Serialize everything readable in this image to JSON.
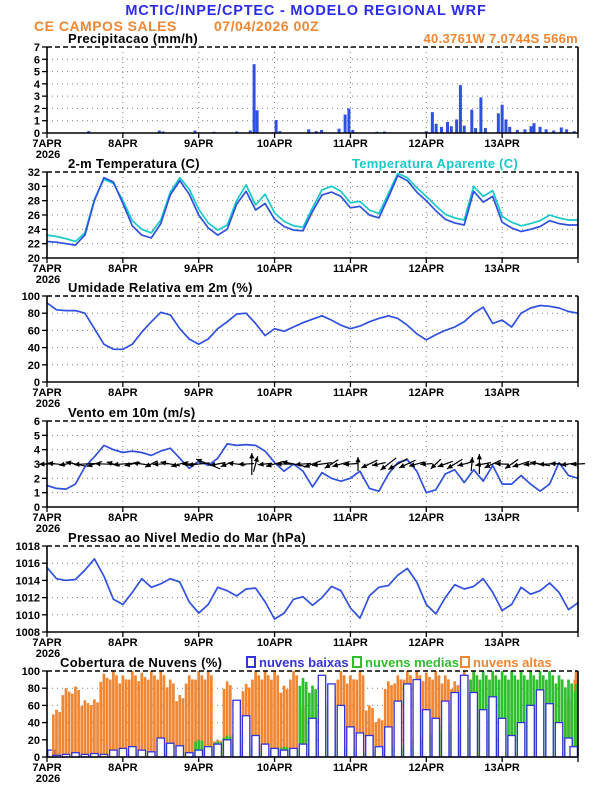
{
  "header": {
    "title": "MCTIC/INPE/CPTEC - MODELO REGIONAL WRF",
    "station": "CE CAMPOS SALES",
    "run": "07/04/2026 00Z",
    "location": "40.3761W 7.0744S 566m"
  },
  "colors": {
    "title_blue": "#2b2bee",
    "orange": "#f08632",
    "line_blue": "#3050e0",
    "cyan": "#17c9c9",
    "green": "#2ebe2e",
    "cloud_blue": "#3434d6",
    "black": "#000000"
  },
  "x_axis": {
    "tick_labels": [
      "7APR",
      "8APR",
      "9APR",
      "10APR",
      "11APR",
      "12APR",
      "13APR"
    ],
    "year_label": "2026",
    "range_days": [
      0,
      7
    ],
    "grid": "dotted"
  },
  "chart_data": [
    {
      "id": "precip",
      "type": "bar",
      "title": "Precipitacao (mm/h)",
      "ylim": [
        0,
        7
      ],
      "yticks": [
        0,
        1,
        2,
        3,
        4,
        5,
        6,
        7
      ],
      "bar_color": "line_blue",
      "bars": [
        [
          0.55,
          0.15
        ],
        [
          1.48,
          0.2
        ],
        [
          1.53,
          0.12
        ],
        [
          1.95,
          0.2
        ],
        [
          2.2,
          0.1
        ],
        [
          2.5,
          0.12
        ],
        [
          2.68,
          0.2
        ],
        [
          2.73,
          5.6
        ],
        [
          2.77,
          1.85
        ],
        [
          3.02,
          1.05
        ],
        [
          3.07,
          0.15
        ],
        [
          3.45,
          0.3
        ],
        [
          3.55,
          0.15
        ],
        [
          3.62,
          0.25
        ],
        [
          3.85,
          0.35
        ],
        [
          3.93,
          1.5
        ],
        [
          3.98,
          2.0
        ],
        [
          4.03,
          0.25
        ],
        [
          4.35,
          0.1
        ],
        [
          4.45,
          0.12
        ],
        [
          5.0,
          0.15
        ],
        [
          5.08,
          1.7
        ],
        [
          5.13,
          0.75
        ],
        [
          5.2,
          0.5
        ],
        [
          5.28,
          0.9
        ],
        [
          5.33,
          0.55
        ],
        [
          5.4,
          1.1
        ],
        [
          5.45,
          3.9
        ],
        [
          5.5,
          0.6
        ],
        [
          5.6,
          1.9
        ],
        [
          5.65,
          0.4
        ],
        [
          5.72,
          2.9
        ],
        [
          5.78,
          0.4
        ],
        [
          5.95,
          1.6
        ],
        [
          6.0,
          2.3
        ],
        [
          6.05,
          1.1
        ],
        [
          6.1,
          0.5
        ],
        [
          6.2,
          0.25
        ],
        [
          6.3,
          0.3
        ],
        [
          6.38,
          0.55
        ],
        [
          6.42,
          0.8
        ],
        [
          6.5,
          0.5
        ],
        [
          6.58,
          0.3
        ],
        [
          6.68,
          0.2
        ],
        [
          6.78,
          0.45
        ],
        [
          6.85,
          0.3
        ],
        [
          6.95,
          0.15
        ]
      ]
    },
    {
      "id": "temp",
      "type": "line",
      "title": "2-m Temperatura (C)",
      "ylim": [
        20,
        32
      ],
      "yticks": [
        20,
        22,
        24,
        26,
        28,
        30,
        32
      ],
      "x_step_days": 0.125,
      "series": [
        {
          "name": "Temperatura Aparente (C)",
          "color": "cyan",
          "values": [
            23.2,
            23.0,
            22.7,
            22.3,
            23.5,
            28.2,
            31.0,
            30.4,
            28.0,
            25.2,
            24.0,
            23.5,
            25.3,
            29.2,
            31.2,
            29.6,
            26.8,
            24.9,
            23.9,
            24.6,
            28.0,
            30.2,
            27.4,
            28.9,
            26.3,
            25.1,
            24.5,
            24.3,
            27.0,
            29.5,
            30.0,
            29.3,
            27.7,
            27.9,
            26.7,
            26.2,
            29.0,
            31.8,
            31.2,
            29.8,
            28.6,
            27.3,
            26.1,
            25.6,
            25.3,
            30.0,
            28.6,
            29.4,
            25.8,
            25.0,
            24.5,
            24.8,
            25.2,
            26.0,
            25.6,
            25.3,
            25.3
          ]
        },
        {
          "name": "2-m Temperatura (C)",
          "color": "line_blue",
          "values": [
            22.3,
            22.2,
            22.0,
            21.8,
            23.2,
            28.0,
            31.2,
            30.6,
            27.6,
            24.5,
            23.2,
            22.8,
            24.8,
            28.8,
            30.8,
            28.9,
            26.0,
            24.2,
            23.2,
            24.0,
            27.5,
            29.3,
            26.7,
            27.6,
            25.4,
            24.4,
            23.9,
            23.8,
            26.5,
            28.8,
            29.2,
            28.6,
            27.0,
            27.2,
            26.0,
            25.6,
            28.5,
            31.5,
            30.8,
            29.2,
            28.0,
            26.6,
            25.4,
            24.9,
            24.6,
            29.3,
            27.8,
            28.6,
            25.0,
            24.2,
            23.7,
            24.0,
            24.4,
            25.2,
            24.8,
            24.6,
            24.6
          ]
        }
      ]
    },
    {
      "id": "rh",
      "type": "line",
      "title": "Umidade Relativa em 2m (%)",
      "ylim": [
        0,
        100
      ],
      "yticks": [
        0,
        20,
        40,
        60,
        80,
        100
      ],
      "x_step_days": 0.125,
      "series": [
        {
          "name": "Umidade Relativa em 2m (%)",
          "color": "line_blue",
          "values": [
            92,
            84,
            83,
            83,
            80,
            62,
            44,
            38,
            38,
            44,
            58,
            70,
            81,
            78,
            62,
            50,
            44,
            50,
            62,
            70,
            79,
            80,
            68,
            54,
            62,
            59,
            64,
            69,
            73,
            77,
            72,
            66,
            62,
            65,
            70,
            74,
            77,
            74,
            66,
            56,
            49,
            55,
            60,
            64,
            70,
            80,
            87,
            68,
            72,
            64,
            80,
            86,
            89,
            88,
            86,
            82,
            80
          ]
        }
      ]
    },
    {
      "id": "wind",
      "type": "wind",
      "title": "Vento em 10m (m/s)",
      "ylim": [
        0,
        6
      ],
      "yticks": [
        0,
        1,
        2,
        3,
        4,
        5,
        6
      ],
      "x_step_days": 0.125,
      "arrow_anchor_value": 3,
      "series": [
        {
          "name": "Vento em 10m (m/s)",
          "color": "line_blue",
          "values": [
            1.5,
            1.3,
            1.25,
            1.6,
            2.8,
            3.5,
            4.3,
            4.0,
            3.8,
            3.9,
            3.8,
            3.6,
            3.9,
            4.1,
            3.4,
            2.7,
            3.2,
            2.9,
            3.4,
            4.4,
            4.3,
            4.35,
            4.3,
            3.9,
            3.1,
            2.5,
            3.0,
            2.5,
            1.4,
            2.4,
            2.0,
            1.8,
            2.0,
            2.5,
            1.3,
            1.1,
            2.3,
            3.1,
            3.3,
            2.5,
            1.0,
            1.2,
            2.3,
            2.6,
            1.7,
            2.6,
            1.8,
            2.9,
            1.6,
            1.6,
            2.2,
            1.6,
            1.1,
            1.6,
            3.1,
            2.2,
            2.0
          ]
        }
      ],
      "arrows": [
        [
          0,
          182,
          16
        ],
        [
          0.125,
          174,
          18
        ],
        [
          0.25,
          190,
          14
        ],
        [
          0.375,
          168,
          20
        ],
        [
          0.5,
          183,
          22
        ],
        [
          0.625,
          198,
          16
        ],
        [
          0.75,
          178,
          18
        ],
        [
          0.875,
          163,
          14
        ],
        [
          1,
          184,
          20
        ],
        [
          1.125,
          192,
          16
        ],
        [
          1.25,
          173,
          18
        ],
        [
          1.375,
          207,
          14
        ],
        [
          1.5,
          183,
          16
        ],
        [
          1.625,
          169,
          20
        ],
        [
          1.75,
          196,
          18
        ],
        [
          1.875,
          181,
          14
        ],
        [
          2,
          186,
          22
        ],
        [
          2.125,
          158,
          26
        ],
        [
          2.25,
          191,
          16
        ],
        [
          2.375,
          202,
          14
        ],
        [
          2.5,
          174,
          18
        ],
        [
          2.625,
          183,
          16
        ],
        [
          2.7,
          90,
          22
        ],
        [
          2.75,
          75,
          16
        ],
        [
          2.875,
          186,
          14
        ],
        [
          3,
          196,
          18
        ],
        [
          3.125,
          179,
          16
        ],
        [
          3.25,
          168,
          24
        ],
        [
          3.375,
          184,
          16
        ],
        [
          3.5,
          201,
          18
        ],
        [
          3.625,
          188,
          20
        ],
        [
          3.75,
          212,
          16
        ],
        [
          3.875,
          196,
          18
        ],
        [
          4,
          184,
          14
        ],
        [
          4.1,
          90,
          14
        ],
        [
          4.25,
          206,
          18
        ],
        [
          4.375,
          192,
          14
        ],
        [
          4.5,
          218,
          20
        ],
        [
          4.625,
          210,
          22
        ],
        [
          4.75,
          205,
          18
        ],
        [
          4.875,
          196,
          16
        ],
        [
          5,
          184,
          12
        ],
        [
          5.125,
          224,
          14
        ],
        [
          5.25,
          200,
          16
        ],
        [
          5.375,
          212,
          18
        ],
        [
          5.5,
          195,
          14
        ],
        [
          5.6,
          85,
          14
        ],
        [
          5.7,
          90,
          20
        ],
        [
          5.75,
          190,
          16
        ],
        [
          5.875,
          205,
          18
        ],
        [
          6,
          178,
          14
        ],
        [
          6.125,
          215,
          16
        ],
        [
          6.25,
          198,
          18
        ],
        [
          6.375,
          186,
          14
        ],
        [
          6.5,
          170,
          20
        ],
        [
          6.625,
          182,
          22
        ],
        [
          6.75,
          176,
          18
        ],
        [
          6.875,
          188,
          16
        ],
        [
          7,
          183,
          14
        ]
      ]
    },
    {
      "id": "pres",
      "type": "line",
      "title": "Pressao ao Nivel Medio do Mar (hPa)",
      "ylim": [
        1008,
        1018
      ],
      "yticks": [
        1008,
        1010,
        1012,
        1014,
        1016,
        1018
      ],
      "x_step_days": 0.125,
      "series": [
        {
          "name": "Pressao ao Nivel Medio do Mar (hPa)",
          "color": "line_blue",
          "values": [
            1015.5,
            1014.2,
            1014.0,
            1014.1,
            1015.2,
            1016.5,
            1014.5,
            1011.8,
            1011.2,
            1012.6,
            1014.2,
            1013.2,
            1013.6,
            1014.2,
            1013.8,
            1011.5,
            1010.2,
            1011.2,
            1013.2,
            1012.8,
            1012.2,
            1013.0,
            1013.1,
            1011.5,
            1009.5,
            1010.2,
            1011.8,
            1012.1,
            1011.1,
            1012.0,
            1013.3,
            1012.8,
            1010.8,
            1009.6,
            1012.2,
            1013.2,
            1013.4,
            1014.6,
            1015.4,
            1013.8,
            1011.2,
            1010.1,
            1012.0,
            1013.5,
            1013.0,
            1013.3,
            1014.2,
            1012.6,
            1010.5,
            1011.2,
            1013.2,
            1012.4,
            1012.8,
            1013.7,
            1012.6,
            1010.6,
            1011.4
          ]
        }
      ]
    },
    {
      "id": "cloud",
      "type": "cloud",
      "title": "Cobertura de Nuvens (%)",
      "ylim": [
        0,
        100
      ],
      "yticks": [
        0,
        20,
        40,
        60,
        80,
        100
      ],
      "x_step_days": 0.125,
      "series": [
        {
          "name": "nuvens altas",
          "color": "orange",
          "style": "fill",
          "values": [
            0,
            55,
            80,
            82,
            66,
            67,
            97,
            100,
            95,
            100,
            98,
            100,
            100,
            90,
            72,
            95,
            100,
            100,
            20,
            88,
            30,
            85,
            100,
            100,
            100,
            83,
            100,
            60,
            40,
            55,
            75,
            100,
            95,
            100,
            60,
            45,
            88,
            95,
            100,
            100,
            98,
            100,
            95,
            88,
            100,
            100,
            40,
            25,
            10,
            5,
            0,
            0,
            5,
            10,
            30,
            70,
            100
          ]
        },
        {
          "name": "nuvens medias",
          "color": "green",
          "style": "fill",
          "values": [
            0,
            0,
            0,
            0,
            0,
            0,
            0,
            0,
            0,
            5,
            0,
            0,
            8,
            5,
            0,
            5,
            20,
            10,
            18,
            25,
            18,
            10,
            15,
            8,
            10,
            12,
            8,
            92,
            83,
            62,
            30,
            15,
            10,
            8,
            5,
            10,
            15,
            10,
            12,
            20,
            25,
            30,
            40,
            30,
            35,
            100,
            100,
            100,
            100,
            100,
            100,
            100,
            100,
            100,
            95,
            90,
            85
          ]
        },
        {
          "name": "nuvens baixas",
          "color": "cloud_blue",
          "style": "outline",
          "values": [
            8,
            2,
            3,
            5,
            3,
            4,
            3,
            8,
            10,
            12,
            8,
            6,
            22,
            16,
            13,
            5,
            8,
            12,
            15,
            20,
            66,
            48,
            25,
            15,
            10,
            8,
            10,
            15,
            45,
            95,
            85,
            60,
            35,
            28,
            25,
            12,
            35,
            65,
            85,
            90,
            55,
            45,
            65,
            75,
            95,
            75,
            55,
            70,
            45,
            25,
            40,
            60,
            78,
            62,
            40,
            22,
            12
          ]
        }
      ]
    }
  ]
}
